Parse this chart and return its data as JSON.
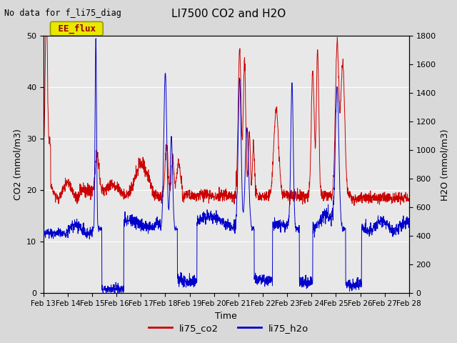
{
  "title": "LI7500 CO2 and H2O",
  "subtitle": "No data for f_li75_diag",
  "xlabel": "Time",
  "ylabel_left": "CO2 (mmol/m3)",
  "ylabel_right": "H2O (mmol/m3)",
  "ylim_left": [
    0,
    50
  ],
  "ylim_right": [
    0,
    1800
  ],
  "xtick_labels": [
    "Feb 13",
    "Feb 14",
    "Feb 15",
    "Feb 16",
    "Feb 17",
    "Feb 18",
    "Feb 19",
    "Feb 20",
    "Feb 21",
    "Feb 22",
    "Feb 23",
    "Feb 24",
    "Feb 25",
    "Feb 26",
    "Feb 27",
    "Feb 28"
  ],
  "legend_entries": [
    "li75_co2",
    "li75_h2o"
  ],
  "co2_color": "#cc0000",
  "h2o_color": "#0000cc",
  "bg_color": "#d9d9d9",
  "plot_bg_color": "#e8e8e8",
  "grid_color": "#ffffff",
  "ee_flux_box_color": "#e8e800",
  "ee_flux_text_color": "#990000",
  "n_points": 2000,
  "day_start": 13,
  "day_end": 28
}
